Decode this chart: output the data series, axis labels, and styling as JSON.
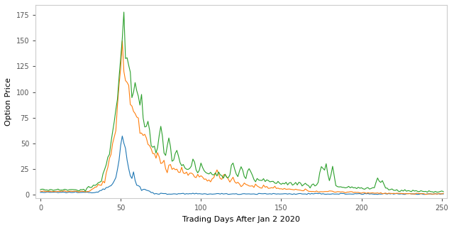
{
  "title": "",
  "xlabel": "Trading Days After Jan 2 2020",
  "ylabel": "Option Price",
  "xlim": [
    -3,
    253
  ],
  "ylim": [
    -4,
    185
  ],
  "yticks": [
    0,
    25,
    50,
    75,
    100,
    125,
    150,
    175
  ],
  "xticks": [
    0,
    50,
    100,
    150,
    200,
    250
  ],
  "line_colors": [
    "#1f77b4",
    "#ff7f0e",
    "#2ca02c"
  ],
  "line_width": 0.8,
  "bg_color": "#ffffff",
  "seed": 12345
}
